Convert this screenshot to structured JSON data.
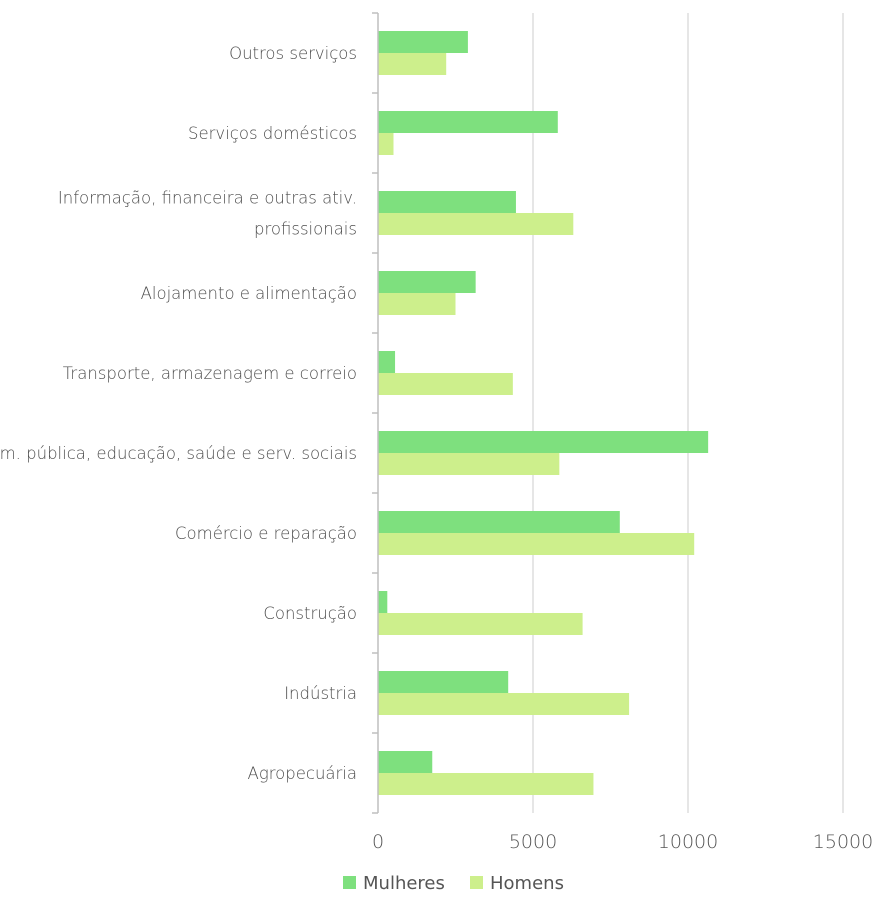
{
  "chart_data": {
    "type": "bar",
    "orientation": "horizontal",
    "title": "",
    "xlabel": "",
    "ylabel": "",
    "xlim": [
      0,
      15000
    ],
    "x_ticks": [
      0,
      5000,
      10000,
      15000
    ],
    "grid": "vertical",
    "legend_position": "bottom",
    "categories": [
      [
        "Outros serviços"
      ],
      [
        "Serviços domésticos"
      ],
      [
        "Informação, financeira e outras ativ.",
        "profissionais"
      ],
      [
        "Alojamento e alimentação"
      ],
      [
        "Transporte, armazenagem e correio"
      ],
      [
        "Adm. pública, educação, saúde e serv. sociais"
      ],
      [
        "Comércio e reparação"
      ],
      [
        "Construção"
      ],
      [
        "Indústria"
      ],
      [
        "Agropecuária"
      ]
    ],
    "series": [
      {
        "name": "Mulheres",
        "color": "#7ee07e",
        "values": [
          2900,
          5800,
          4450,
          3150,
          550,
          10650,
          7800,
          300,
          4200,
          1750
        ]
      },
      {
        "name": "Homens",
        "color": "#cdef8c",
        "values": [
          2200,
          500,
          6300,
          2500,
          4350,
          5850,
          10200,
          6600,
          8100,
          6950
        ]
      }
    ]
  }
}
